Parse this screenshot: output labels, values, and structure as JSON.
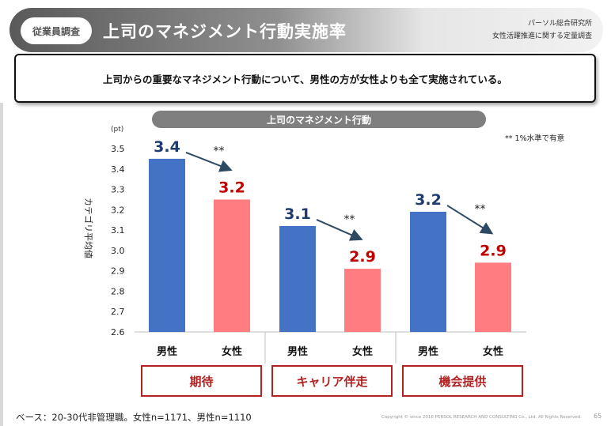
{
  "header": {
    "tag": "従業員調査",
    "title": "上司のマネジメント行動実施率",
    "source_line1": "パーソル総合研究所",
    "source_line2": "女性活躍推進に関する定量調査"
  },
  "summary": "上司からの重要なマネジメント行動について、男性の方が女性よりも全て実施されている。",
  "colors": {
    "male": "#4472C4",
    "female": "#FF7C80",
    "male_label": "#1F3A6E",
    "female_label": "#C00000",
    "group_border": "#B22222",
    "pill": "#7F7F7F"
  },
  "chart_data": {
    "type": "bar",
    "title": "上司のマネジメント行動",
    "unit": "(pt)",
    "ylabel": "カテゴリ平均値",
    "ylim": [
      2.6,
      3.5
    ],
    "yticks": [
      "2.6",
      "2.7",
      "2.8",
      "2.9",
      "3.0",
      "3.1",
      "3.2",
      "3.3",
      "3.4",
      "3.5"
    ],
    "note": "** 1%水準で有意",
    "significance": "**",
    "groups": [
      {
        "name": "期待",
        "bars": [
          {
            "label": "男性",
            "value": 3.45,
            "display": "3.4"
          },
          {
            "label": "女性",
            "value": 3.25,
            "display": "3.2"
          }
        ]
      },
      {
        "name": "キャリア伴走",
        "bars": [
          {
            "label": "男性",
            "value": 3.12,
            "display": "3.1"
          },
          {
            "label": "女性",
            "value": 2.91,
            "display": "2.9"
          }
        ]
      },
      {
        "name": "機会提供",
        "bars": [
          {
            "label": "男性",
            "value": 3.19,
            "display": "3.2"
          },
          {
            "label": "女性",
            "value": 2.94,
            "display": "2.9"
          }
        ]
      }
    ]
  },
  "footer": {
    "base": "ベース：20-30代非管理職。女性n=1171、男性n=1110",
    "copyright": "Copyright © since 2016 PERSOL RESEARCH AND CONSULTING Co., Ltd. All Rights Reserved.",
    "page": "65"
  }
}
